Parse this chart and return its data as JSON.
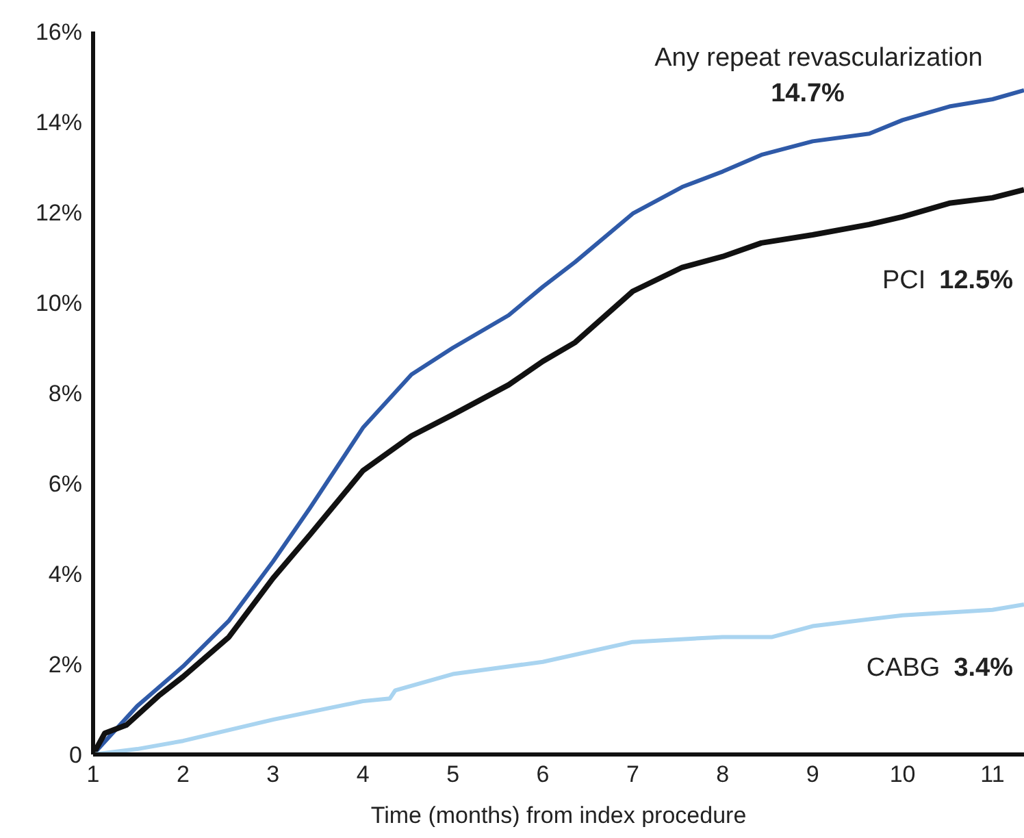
{
  "chart_data": {
    "type": "line",
    "xlabel": "Time (months) from index procedure",
    "xlim": [
      1,
      11.35
    ],
    "xticks": [
      1,
      2,
      3,
      4,
      5,
      6,
      7,
      8,
      9,
      10,
      11
    ],
    "ylim": [
      0,
      16
    ],
    "yticks": [
      0,
      {
        "value": 2,
        "label": "2%"
      },
      {
        "value": 4,
        "label": "4%"
      },
      {
        "value": 6,
        "label": "6%"
      },
      {
        "value": 8,
        "label": "8%"
      },
      {
        "value": 10,
        "label": "10%"
      },
      {
        "value": 12,
        "label": "12%"
      },
      {
        "value": 14,
        "label": "14%"
      },
      {
        "value": 16,
        "label": "16%"
      }
    ],
    "grid": false,
    "marker": "none",
    "line_style": "solid",
    "series": [
      {
        "name": "Any repeat revascularization",
        "color": "#2f5aa8",
        "x": [
          1,
          1.49,
          2,
          2.51,
          3,
          3.41,
          4,
          4.54,
          5,
          5.62,
          6,
          6.36,
          7,
          7.55,
          8,
          8.43,
          9,
          9.63,
          10,
          10.52,
          11,
          11.35
        ],
        "values": [
          0,
          1.07,
          1.95,
          2.96,
          4.27,
          5.45,
          7.23,
          8.41,
          9.0,
          9.72,
          10.35,
          10.9,
          11.97,
          12.56,
          12.9,
          13.27,
          13.57,
          13.74,
          14.04,
          14.34,
          14.5,
          14.7
        ]
      },
      {
        "name": "PCI",
        "color": "#111111",
        "x": [
          1,
          1.13,
          1.37,
          1.73,
          2,
          2.51,
          3,
          3.41,
          4,
          4.54,
          5,
          5.62,
          6,
          6.36,
          7,
          7.55,
          8,
          8.43,
          9,
          9.63,
          10,
          10.52,
          11,
          11.35
        ],
        "values": [
          0,
          0.47,
          0.65,
          1.3,
          1.72,
          2.6,
          3.9,
          4.86,
          6.28,
          7.05,
          7.52,
          8.18,
          8.7,
          9.12,
          10.25,
          10.78,
          11.02,
          11.32,
          11.5,
          11.73,
          11.9,
          12.2,
          12.32,
          12.5
        ]
      },
      {
        "name": "CABG",
        "color": "#a9d4f0",
        "x": [
          1,
          1.49,
          2,
          3,
          4,
          4.3,
          4.36,
          5,
          6,
          7,
          8,
          8.55,
          9,
          10,
          11,
          11.35
        ],
        "values": [
          0,
          0.12,
          0.3,
          0.77,
          1.18,
          1.24,
          1.42,
          1.78,
          2.05,
          2.49,
          2.6,
          2.6,
          2.84,
          3.08,
          3.2,
          3.32
        ]
      }
    ],
    "annotations": [
      "14.7%",
      "12.5%",
      "3.4%"
    ]
  }
}
